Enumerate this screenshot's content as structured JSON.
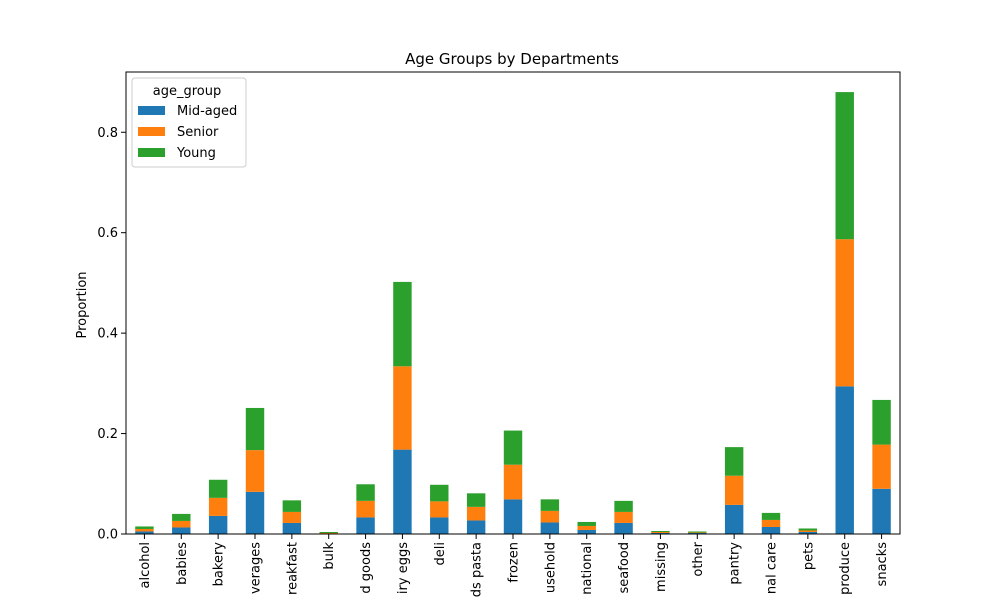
{
  "chart_data": {
    "type": "bar",
    "stacked": true,
    "title": "Age Groups by Departments",
    "xlabel": "",
    "ylabel": "Proportion",
    "ylim": [
      0,
      0.92
    ],
    "yticks": [
      "0.0",
      "0.2",
      "0.4",
      "0.6",
      "0.8"
    ],
    "categories": [
      "alcohol",
      "babies",
      "bakery",
      "beverages",
      "breakfast",
      "bulk",
      "canned goods",
      "dairy eggs",
      "deli",
      "dry goods pasta",
      "frozen",
      "household",
      "international",
      "meat seafood",
      "missing",
      "other",
      "pantry",
      "personal care",
      "pets",
      "produce",
      "snacks"
    ],
    "category_labels_shown": [
      "alcohol",
      "babies",
      "bakery",
      "verages",
      "reakfast",
      "bulk",
      "d goods",
      "iry eggs",
      "deli",
      "ds pasta",
      "frozen",
      "usehold",
      "national",
      "seafood",
      "missing",
      "other",
      "pantry",
      "nal care",
      "pets",
      "produce",
      "snacks"
    ],
    "legend": {
      "title": "age_group",
      "position": "upper-left"
    },
    "series": [
      {
        "name": "Mid-aged",
        "color": "#1f77b4",
        "values": [
          0.005,
          0.013,
          0.036,
          0.084,
          0.022,
          0.001,
          0.033,
          0.168,
          0.033,
          0.027,
          0.069,
          0.023,
          0.008,
          0.022,
          0.002,
          0.002,
          0.058,
          0.014,
          0.004,
          0.294,
          0.09
        ]
      },
      {
        "name": "Senior",
        "color": "#ff7f0e",
        "values": [
          0.005,
          0.013,
          0.036,
          0.083,
          0.022,
          0.001,
          0.033,
          0.166,
          0.032,
          0.027,
          0.069,
          0.023,
          0.008,
          0.022,
          0.002,
          0.001,
          0.058,
          0.014,
          0.003,
          0.293,
          0.088
        ]
      },
      {
        "name": "Young",
        "color": "#2ca02c",
        "values": [
          0.005,
          0.014,
          0.036,
          0.084,
          0.023,
          0.002,
          0.033,
          0.168,
          0.033,
          0.027,
          0.068,
          0.023,
          0.008,
          0.022,
          0.002,
          0.002,
          0.057,
          0.014,
          0.004,
          0.293,
          0.089
        ]
      }
    ]
  }
}
